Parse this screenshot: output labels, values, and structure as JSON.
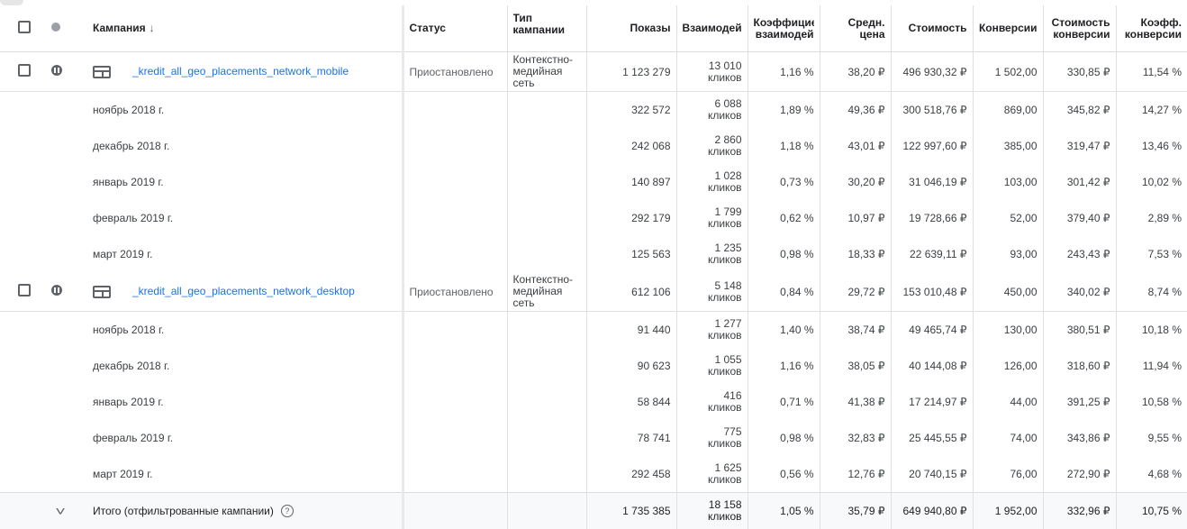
{
  "header": {
    "campaign": "Кампания",
    "sort_icon": "arrow-down-icon",
    "status": "Статус",
    "type_line1": "Тип",
    "type_line2": "кампании",
    "impressions": "Показы",
    "interactions": "Взаимодей",
    "rate_line1": "Коэффицие",
    "rate_line2": "взаимодей",
    "avg_line1": "Средн.",
    "avg_line2": "цена",
    "cost": "Стоимость",
    "conversions": "Конверсии",
    "cpc_line1": "Стоимость",
    "cpc_line2": "конверсии",
    "cr_line1": "Коэфф.",
    "cr_line2": "конверсии"
  },
  "campaigns": [
    {
      "name": "_kredit_all_geo_placements_network_mobile",
      "status": "Приостановлено",
      "type_line1": "Контекстно-",
      "type_line2": "медийная",
      "type_line3": "сеть",
      "impressions": "1 123 279",
      "interactions_num": "13 010",
      "interactions_unit": "кликов",
      "rate": "1,16 %",
      "avg": "38,20 ₽",
      "cost": "496 930,32 ₽",
      "conversions": "1 502,00",
      "cpc": "330,85 ₽",
      "cr": "11,54 %",
      "months": [
        {
          "month": "ноябрь 2018 г.",
          "impressions": "322 572",
          "interactions_num": "6 088",
          "interactions_unit": "кликов",
          "rate": "1,89 %",
          "avg": "49,36 ₽",
          "cost": "300 518,76 ₽",
          "conversions": "869,00",
          "cpc": "345,82 ₽",
          "cr": "14,27 %"
        },
        {
          "month": "декабрь 2018 г.",
          "impressions": "242 068",
          "interactions_num": "2 860",
          "interactions_unit": "кликов",
          "rate": "1,18 %",
          "avg": "43,01 ₽",
          "cost": "122 997,60 ₽",
          "conversions": "385,00",
          "cpc": "319,47 ₽",
          "cr": "13,46 %"
        },
        {
          "month": "январь 2019 г.",
          "impressions": "140 897",
          "interactions_num": "1 028",
          "interactions_unit": "кликов",
          "rate": "0,73 %",
          "avg": "30,20 ₽",
          "cost": "31 046,19 ₽",
          "conversions": "103,00",
          "cpc": "301,42 ₽",
          "cr": "10,02 %"
        },
        {
          "month": "февраль 2019 г.",
          "impressions": "292 179",
          "interactions_num": "1 799",
          "interactions_unit": "кликов",
          "rate": "0,62 %",
          "avg": "10,97 ₽",
          "cost": "19 728,66 ₽",
          "conversions": "52,00",
          "cpc": "379,40 ₽",
          "cr": "2,89 %"
        },
        {
          "month": "март 2019 г.",
          "impressions": "125 563",
          "interactions_num": "1 235",
          "interactions_unit": "кликов",
          "rate": "0,98 %",
          "avg": "18,33 ₽",
          "cost": "22 639,11 ₽",
          "conversions": "93,00",
          "cpc": "243,43 ₽",
          "cr": "7,53 %"
        }
      ]
    },
    {
      "name": "_kredit_all_geo_placements_network_desktop",
      "status": "Приостановлено",
      "type_line1": "Контекстно-",
      "type_line2": "медийная",
      "type_line3": "сеть",
      "impressions": "612 106",
      "interactions_num": "5 148",
      "interactions_unit": "кликов",
      "rate": "0,84 %",
      "avg": "29,72 ₽",
      "cost": "153 010,48 ₽",
      "conversions": "450,00",
      "cpc": "340,02 ₽",
      "cr": "8,74 %",
      "months": [
        {
          "month": "ноябрь 2018 г.",
          "impressions": "91 440",
          "interactions_num": "1 277",
          "interactions_unit": "кликов",
          "rate": "1,40 %",
          "avg": "38,74 ₽",
          "cost": "49 465,74 ₽",
          "conversions": "130,00",
          "cpc": "380,51 ₽",
          "cr": "10,18 %"
        },
        {
          "month": "декабрь 2018 г.",
          "impressions": "90 623",
          "interactions_num": "1 055",
          "interactions_unit": "кликов",
          "rate": "1,16 %",
          "avg": "38,05 ₽",
          "cost": "40 144,08 ₽",
          "conversions": "126,00",
          "cpc": "318,60 ₽",
          "cr": "11,94 %"
        },
        {
          "month": "январь 2019 г.",
          "impressions": "58 844",
          "interactions_num": "416",
          "interactions_unit": "кликов",
          "rate": "0,71 %",
          "avg": "41,38 ₽",
          "cost": "17 214,97 ₽",
          "conversions": "44,00",
          "cpc": "391,25 ₽",
          "cr": "10,58 %"
        },
        {
          "month": "февраль 2019 г.",
          "impressions": "78 741",
          "interactions_num": "775",
          "interactions_unit": "кликов",
          "rate": "0,98 %",
          "avg": "32,83 ₽",
          "cost": "25 445,55 ₽",
          "conversions": "74,00",
          "cpc": "343,86 ₽",
          "cr": "9,55 %"
        },
        {
          "month": "март 2019 г.",
          "impressions": "292 458",
          "interactions_num": "1 625",
          "interactions_unit": "кликов",
          "rate": "0,56 %",
          "avg": "12,76 ₽",
          "cost": "20 740,15 ₽",
          "conversions": "76,00",
          "cpc": "272,90 ₽",
          "cr": "4,68 %"
        }
      ]
    }
  ],
  "total": {
    "label": "Итого (отфильтрованные кампании)",
    "help_icon": "?",
    "impressions": "1 735 385",
    "interactions_num": "18 158",
    "interactions_unit": "кликов",
    "rate": "1,05 %",
    "avg": "35,79 ₽",
    "cost": "649 940,80 ₽",
    "conversions": "1 952,00",
    "cpc": "332,96 ₽",
    "cr": "10,75 %"
  },
  "icons": {
    "expand": "˅"
  }
}
